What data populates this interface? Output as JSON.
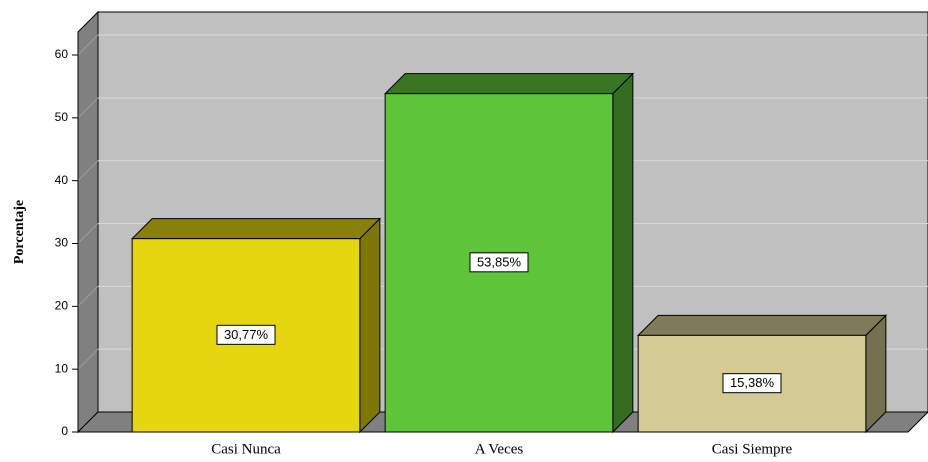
{
  "chart_data": {
    "type": "bar",
    "y_label": "Porcentaje",
    "categories": [
      "Casi Nunca",
      "A Veces",
      "Casi Siempre"
    ],
    "values": [
      30.77,
      53.85,
      15.38
    ],
    "value_labels": [
      "30,77%",
      "53,85%",
      "15,38%"
    ],
    "colors": [
      "#e5d610",
      "#5ec43a",
      "#d3cb93"
    ],
    "ylim": [
      0,
      60
    ],
    "yticks": [
      0,
      10,
      20,
      30,
      40,
      50,
      60
    ],
    "grid": true
  }
}
